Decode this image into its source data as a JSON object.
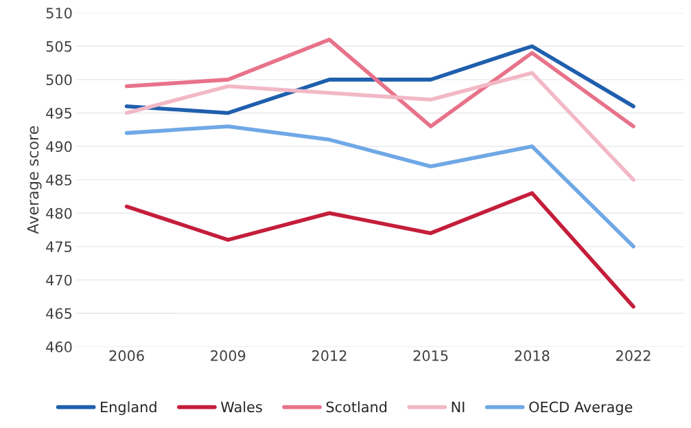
{
  "chart_data": {
    "type": "line",
    "ylabel": "Average score",
    "categories": [
      "2006",
      "2009",
      "2012",
      "2015",
      "2018",
      "2022"
    ],
    "series": [
      {
        "name": "England",
        "color": "#1f5fad",
        "values": [
          496,
          495,
          500,
          500,
          505,
          496
        ]
      },
      {
        "name": "Wales",
        "color": "#c41e3a",
        "values": [
          481,
          476,
          480,
          477,
          483,
          466
        ]
      },
      {
        "name": "Scotland",
        "color": "#e8728a",
        "values": [
          499,
          500,
          506,
          493,
          504,
          493
        ]
      },
      {
        "name": "NI",
        "color": "#f2b8c6",
        "values": [
          495,
          499,
          498,
          497,
          501,
          485
        ]
      },
      {
        "name": "OECD Average",
        "color": "#6fa8e6",
        "values": [
          492,
          493,
          491,
          487,
          490,
          475
        ]
      }
    ],
    "ylim": [
      460,
      510
    ],
    "yticks": [
      460,
      465,
      470,
      475,
      480,
      485,
      490,
      495,
      500,
      505,
      510
    ],
    "grid": "y",
    "legend": "bottom",
    "marker": "none",
    "line_style": "solid"
  }
}
